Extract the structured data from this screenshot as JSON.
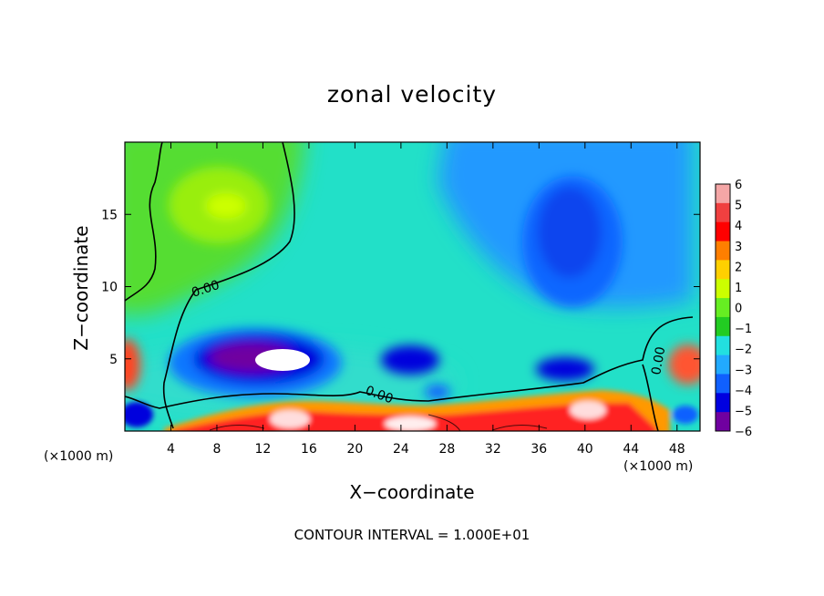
{
  "chart_data": {
    "type": "heatmap",
    "title": "zonal velocity",
    "xlabel": "X−coordinate",
    "ylabel": "Z−coordinate",
    "x_unit_left": "(×1000 m)",
    "x_unit_right": "(×1000 m)",
    "footnote": "CONTOUR INTERVAL = 1.000E+01",
    "xlim": [
      0,
      50
    ],
    "ylim": [
      0,
      20
    ],
    "x_ticks": [
      4,
      8,
      12,
      16,
      20,
      24,
      28,
      32,
      36,
      40,
      44,
      48
    ],
    "y_ticks": [
      5,
      10,
      15
    ],
    "contour_labels": [
      "0.00",
      "0.00",
      "0.00"
    ],
    "colorbar": {
      "levels": [
        6,
        5,
        4,
        3,
        2,
        1,
        0,
        -1,
        -2,
        -3,
        -4,
        -5,
        -6
      ],
      "colors": [
        "#f4a6a6",
        "#f04040",
        "#ff0000",
        "#ff7f00",
        "#ffd000",
        "#ccff00",
        "#66ee22",
        "#22cc22",
        "#22e0e0",
        "#22aaff",
        "#1060ff",
        "#0000e0",
        "#7000a0"
      ]
    },
    "features": [
      {
        "kind": "positive-core",
        "x": 10,
        "z": 15.5,
        "value": 1
      },
      {
        "kind": "negative-core",
        "x": 38,
        "z": 12.5,
        "value": -4
      },
      {
        "kind": "negative-core",
        "x": 11,
        "z": 5,
        "value": -6
      },
      {
        "kind": "negative-core",
        "x": 25,
        "z": 5,
        "value": -5
      },
      {
        "kind": "negative-core",
        "x": 38,
        "z": 4.5,
        "value": -5
      },
      {
        "kind": "positive-core",
        "x": 0.5,
        "z": 5,
        "value": 5
      },
      {
        "kind": "positive-core",
        "x": 49,
        "z": 5,
        "value": 5
      },
      {
        "kind": "surface-positive-layer",
        "x_range": [
          4,
          47
        ],
        "z_range": [
          0,
          2.5
        ],
        "value": 5
      }
    ]
  }
}
